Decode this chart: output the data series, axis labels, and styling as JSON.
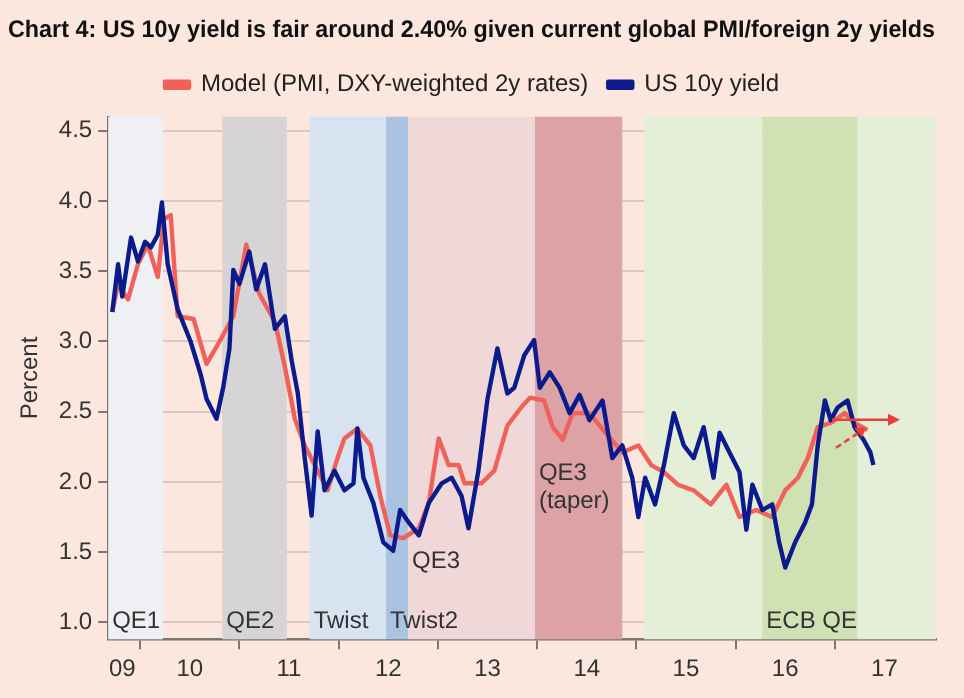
{
  "chart_data": {
    "type": "line",
    "title": "Chart 4: US 10y yield is fair around 2.40% given current global PMI/foreign 2y yields",
    "ylabel": "Percent",
    "xlim": [
      "2009-09-05",
      "2018-01-08"
    ],
    "xticks": [
      {
        "value": "2009-10-26",
        "label": "09"
      },
      {
        "value": "2010",
        "label": null
      },
      {
        "value": "2010-07-01",
        "label": "10"
      },
      {
        "value": "2011",
        "label": null
      },
      {
        "value": "2011-07-01",
        "label": "11"
      },
      {
        "value": "2012",
        "label": null
      },
      {
        "value": "2012-07-01",
        "label": "12"
      },
      {
        "value": "2013",
        "label": null
      },
      {
        "value": "2013-07-01",
        "label": "13"
      },
      {
        "value": "2014",
        "label": null
      },
      {
        "value": "2014-07-01",
        "label": "14"
      },
      {
        "value": "2015",
        "label": null
      },
      {
        "value": "2015-07-01",
        "label": "15"
      },
      {
        "value": "2016",
        "label": null
      },
      {
        "value": "2016-07-01",
        "label": "16"
      },
      {
        "value": "2017",
        "label": null
      },
      {
        "value": "2017-07-01",
        "label": "17"
      }
    ],
    "ylim": [
      0.88,
      4.6
    ],
    "yticks": [
      {
        "value": 1,
        "label": "1.0"
      },
      {
        "value": 1.5,
        "label": "1.5"
      },
      {
        "value": 2,
        "label": "2.0"
      },
      {
        "value": 2.5,
        "label": "2.5"
      },
      {
        "value": 3,
        "label": "3.0"
      },
      {
        "value": 3.5,
        "label": "3.5"
      },
      {
        "value": 4,
        "label": "4.0"
      },
      {
        "value": 4.5,
        "label": "4.5"
      }
    ],
    "grid": "y",
    "legend": "top",
    "line_style": "solid",
    "marker": "none",
    "bands": [
      {
        "axis": "x",
        "from": "2009-09-05",
        "to": "2010-03-23",
        "label": "QE1",
        "color": "#eef0f3"
      },
      {
        "axis": "x",
        "from": "2010-10-29",
        "to": "2011-06-23",
        "label": "QE2",
        "color": "#d6d4d4"
      },
      {
        "axis": "x",
        "from": "2011-09-16",
        "to": "2012-06-23",
        "label": "Twist",
        "color": "#d8e3f1"
      },
      {
        "axis": "x",
        "from": "2012-06-23",
        "to": "2012-09-13",
        "label": "Twist2",
        "color": "#aac3e0"
      },
      {
        "axis": "x",
        "from": "2012-09-13",
        "to": "2013-12-23",
        "label": "QE3",
        "color": "#f1d8d8"
      },
      {
        "axis": "x",
        "from": "2013-12-23",
        "to": "2014-11-10",
        "label": "QE3 (taper)",
        "color": "#dca2a5"
      },
      {
        "axis": "x",
        "from": "2015-01-29",
        "to": "2016-04-08",
        "color": "#e5eed6"
      },
      {
        "axis": "x",
        "from": "2016-04-08",
        "to": "2017-03-23",
        "label": "ECB QE",
        "color": "#d0e1b3"
      },
      {
        "axis": "x",
        "from": "2017-03-23",
        "to": "2018-01-08",
        "color": "#e5eed6"
      }
    ],
    "series": [
      {
        "name": "Model (PMI, DXY-weighted 2y rates)",
        "color": "#f2605a",
        "x": [
          "2009-09-20",
          "2009-10-11",
          "2009-11-17",
          "2009-12-23",
          "2010-01-29",
          "2010-03-05",
          "2010-03-27",
          "2010-04-22",
          "2010-05-17",
          "2010-07-15",
          "2010-09-02",
          "2010-10-19",
          "2010-12-09",
          "2011-01-26",
          "2011-03-13",
          "2011-05-10",
          "2011-06-16",
          "2011-07-22",
          "2011-08-28",
          "2011-10-15",
          "2011-11-21",
          "2011-12-27",
          "2012-01-22",
          "2012-03-09",
          "2012-04-26",
          "2012-06-02",
          "2012-07-08",
          "2012-08-25",
          "2012-10-22",
          "2012-11-28",
          "2013-01-04",
          "2013-02-10",
          "2013-03-16",
          "2013-04-08",
          "2013-06-09",
          "2013-07-26",
          "2013-09-13",
          "2013-11-03",
          "2013-12-05",
          "2014-01-26",
          "2014-02-28",
          "2014-04-04",
          "2014-05-10",
          "2014-07-11",
          "2014-09-09",
          "2014-11-10",
          "2015-01-08",
          "2015-02-25",
          "2015-04-11",
          "2015-06-02",
          "2015-07-29",
          "2015-10-01",
          "2015-11-28",
          "2016-01-15",
          "2016-03-16",
          "2016-05-14",
          "2016-07-01",
          "2016-08-17",
          "2016-09-23",
          "2016-10-29",
          "2016-12-16",
          "2017-02-07",
          "2017-03-13",
          "2017-04-29"
        ],
        "values": [
          3.21,
          3.41,
          3.3,
          3.55,
          3.69,
          3.46,
          3.87,
          3.9,
          3.18,
          3.16,
          2.84,
          3.0,
          3.18,
          3.69,
          3.34,
          3.14,
          2.82,
          2.45,
          2.26,
          2.08,
          1.94,
          2.17,
          2.31,
          2.38,
          2.26,
          1.9,
          1.62,
          1.6,
          1.67,
          1.85,
          2.31,
          2.12,
          2.12,
          1.99,
          1.99,
          2.08,
          2.4,
          2.53,
          2.6,
          2.58,
          2.39,
          2.3,
          2.49,
          2.49,
          2.35,
          2.21,
          2.26,
          2.12,
          2.07,
          1.98,
          1.94,
          1.84,
          1.98,
          1.75,
          1.8,
          1.75,
          1.94,
          2.03,
          2.17,
          2.39,
          2.42,
          2.49,
          2.42,
          2.37
        ]
      },
      {
        "name": "US 10y yield",
        "color": "#0b1b8e",
        "x": [
          "2009-09-20",
          "2009-10-11",
          "2009-10-26",
          "2009-11-28",
          "2009-12-23",
          "2010-01-19",
          "2010-02-10",
          "2010-03-05",
          "2010-03-20",
          "2010-04-11",
          "2010-05-17",
          "2010-07-04",
          "2010-08-10",
          "2010-09-02",
          "2010-10-08",
          "2010-11-03",
          "2010-11-25",
          "2010-12-09",
          "2011-01-01",
          "2011-02-07",
          "2011-03-02",
          "2011-04-04",
          "2011-05-10",
          "2011-06-16",
          "2011-07-11",
          "2011-08-03",
          "2011-08-28",
          "2011-09-23",
          "2011-10-15",
          "2011-11-10",
          "2011-12-16",
          "2012-01-22",
          "2012-02-25",
          "2012-03-09",
          "2012-04-01",
          "2012-05-07",
          "2012-06-13",
          "2012-07-19",
          "2012-08-14",
          "2012-09-16",
          "2012-10-22",
          "2012-11-28",
          "2013-01-15",
          "2013-02-21",
          "2013-03-27",
          "2013-04-22",
          "2013-05-28",
          "2013-07-01",
          "2013-08-07",
          "2013-09-13",
          "2013-10-08",
          "2013-11-14",
          "2013-12-20",
          "2014-01-11",
          "2014-02-17",
          "2014-03-23",
          "2014-04-29",
          "2014-06-05",
          "2014-07-11",
          "2014-08-28",
          "2014-10-04",
          "2014-11-10",
          "2014-12-16",
          "2015-01-08",
          "2015-02-03",
          "2015-03-09",
          "2015-04-11",
          "2015-05-17",
          "2015-06-23",
          "2015-07-29",
          "2015-09-05",
          "2015-10-11",
          "2015-11-03",
          "2015-12-09",
          "2016-01-15",
          "2016-02-10",
          "2016-03-02",
          "2016-04-08",
          "2016-05-14",
          "2016-06-09",
          "2016-07-01",
          "2016-08-07",
          "2016-09-13",
          "2016-10-08",
          "2016-10-29",
          "2016-11-25",
          "2016-12-16",
          "2017-01-11",
          "2017-02-17",
          "2017-03-13",
          "2017-04-15",
          "2017-05-10",
          "2017-05-21"
        ],
        "values": [
          3.21,
          3.55,
          3.32,
          3.74,
          3.57,
          3.71,
          3.67,
          3.76,
          3.99,
          3.55,
          3.23,
          3.0,
          2.77,
          2.59,
          2.45,
          2.68,
          2.95,
          3.51,
          3.41,
          3.64,
          3.37,
          3.55,
          3.09,
          3.18,
          2.86,
          2.63,
          2.17,
          1.76,
          2.36,
          1.94,
          2.08,
          1.94,
          1.99,
          2.38,
          2.03,
          1.85,
          1.57,
          1.51,
          1.8,
          1.71,
          1.62,
          1.85,
          1.99,
          2.03,
          1.9,
          1.67,
          2.08,
          2.59,
          2.95,
          2.63,
          2.67,
          2.9,
          3.01,
          2.67,
          2.78,
          2.67,
          2.49,
          2.62,
          2.44,
          2.58,
          2.17,
          2.26,
          2.03,
          1.75,
          2.03,
          1.84,
          2.12,
          2.49,
          2.26,
          2.17,
          2.39,
          2.03,
          2.35,
          2.21,
          2.07,
          1.66,
          1.98,
          1.8,
          1.84,
          1.57,
          1.39,
          1.57,
          1.71,
          1.84,
          2.26,
          2.58,
          2.44,
          2.53,
          2.58,
          2.39,
          2.3,
          2.21,
          2.12
        ]
      }
    ]
  }
}
